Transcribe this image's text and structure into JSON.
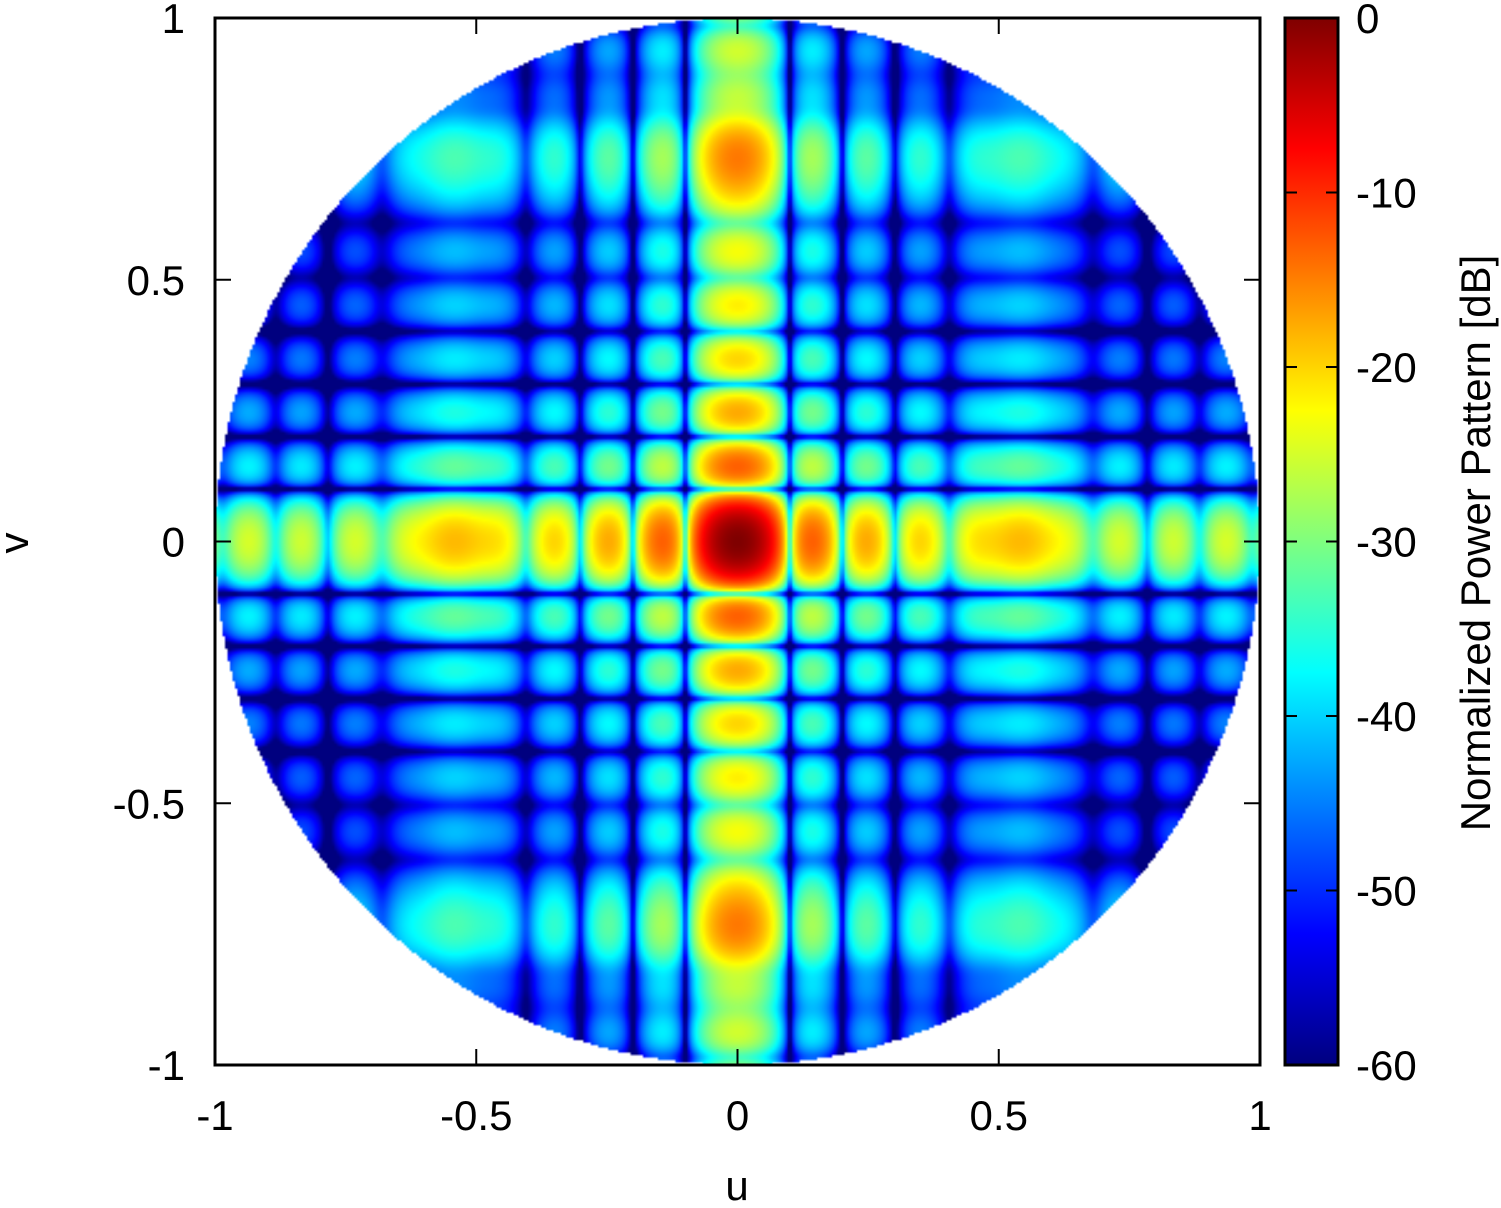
{
  "chart_data": {
    "type": "heatmap",
    "title": "",
    "xlabel": "u",
    "ylabel": "v",
    "colorbar_label": "Normalized Power Pattern [dB]",
    "xlim": [
      -1,
      1
    ],
    "ylim": [
      -1,
      1
    ],
    "x_ticks": [
      -1,
      -0.5,
      0,
      0.5,
      1
    ],
    "x_tick_labels": [
      "-1",
      "-0.5",
      "0",
      "0.5",
      "1"
    ],
    "y_ticks": [
      -1,
      -0.5,
      0,
      0.5,
      1
    ],
    "y_tick_labels": [
      "-1",
      "-0.5",
      "0",
      "0.5",
      "1"
    ],
    "colorbar_range": [
      -60,
      0
    ],
    "colorbar_ticks": [
      0,
      -10,
      -20,
      -30,
      -40,
      -50,
      -60
    ],
    "colorbar_tick_labels": [
      "0",
      "-10",
      "-20",
      "-30",
      "-40",
      "-50",
      "-60"
    ],
    "colormap": [
      "#00007f",
      "#0000ff",
      "#007fff",
      "#00ffff",
      "#7fff7f",
      "#ffff00",
      "#ff7f00",
      "#ff0000",
      "#7f0000"
    ],
    "visible_region": "unit circle u^2 + v^2 <= 1",
    "main_beam": {
      "u": 0,
      "v": 0,
      "level_db": 0
    },
    "principal_cuts": [
      "u = 0",
      "v = 0"
    ],
    "approx_sidelobe_level_db": [
      -28,
      -32
    ],
    "grid": false,
    "legend": "colorbar-right"
  }
}
